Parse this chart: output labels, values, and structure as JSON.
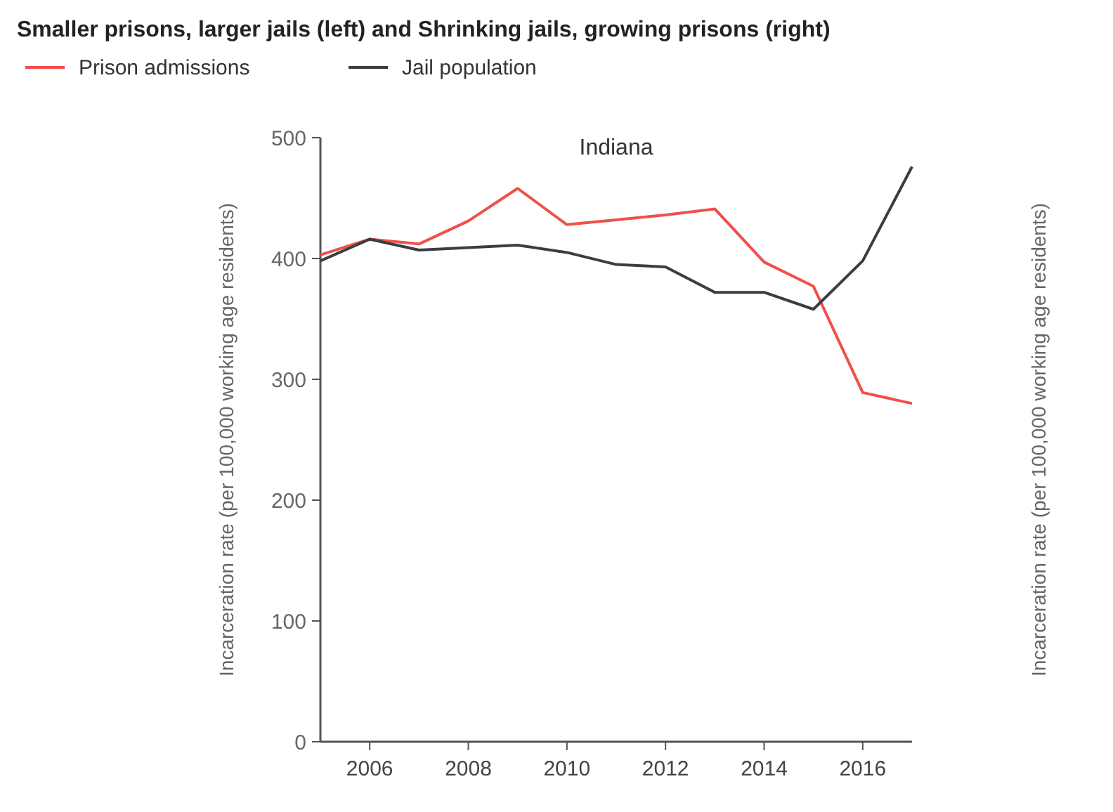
{
  "chart_data": {
    "type": "line",
    "title": "Smaller prisons, larger jails (left) and Shrinking jails, growing prisons (right)",
    "subtitle": "Indiana",
    "ylabel": "Incarceration rate (per 100,000 working age residents)",
    "annotations": [
      "Incarceration rate (per 100,000 working age residents)"
    ],
    "x": [
      2005,
      2006,
      2007,
      2008,
      2009,
      2010,
      2011,
      2012,
      2013,
      2014,
      2015,
      2016,
      2017
    ],
    "series": [
      {
        "name": "Prison admissions",
        "color": "#f0504a",
        "values": [
          403,
          416,
          412,
          431,
          458,
          428,
          432,
          436,
          441,
          397,
          377,
          289,
          280
        ]
      },
      {
        "name": "Jail population",
        "color": "#3a3d42",
        "values": [
          398,
          416,
          407,
          409,
          411,
          405,
          395,
          393,
          372,
          372,
          358,
          398,
          476
        ]
      }
    ],
    "xlim": [
      2005,
      2017
    ],
    "xticks": [
      2006,
      2008,
      2010,
      2012,
      2014,
      2016
    ],
    "ylim": [
      0,
      500
    ],
    "yticks": [
      0,
      100,
      200,
      300,
      400,
      500
    ],
    "grid": false,
    "legend": "top left",
    "marker": "none",
    "line_style": "solid"
  }
}
